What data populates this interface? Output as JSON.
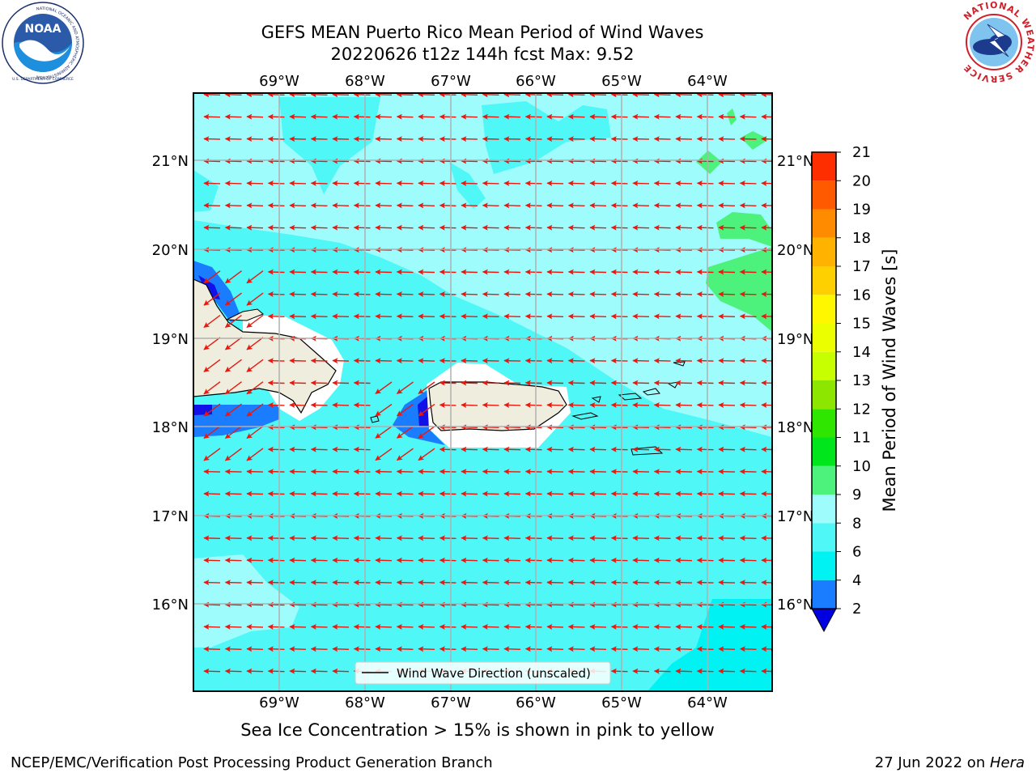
{
  "header": {
    "title_line1": "GEFS MEAN Puerto Rico Mean Period of Wind Waves",
    "title_line2": "20220626 t12z 144h fcst   Max: 9.52"
  },
  "logos": {
    "noaa_text": "NOAA",
    "noaa_ring_text": "NATIONAL OCEANIC AND ATMOSPHERIC ADMINISTRATION",
    "noaa_bottom_text": "U.S. DEPARTMENT OF COMMERCE",
    "nws_ring_text": "NATIONAL WEATHER SERVICE"
  },
  "map": {
    "lon_labels": [
      "69°W",
      "68°W",
      "67°W",
      "66°W",
      "65°W",
      "64°W"
    ],
    "lat_labels": [
      "16°N",
      "17°N",
      "18°N",
      "19°N",
      "20°N",
      "21°N"
    ],
    "legend_label": "Wind Wave Direction (unscaled)",
    "colors": {
      "light_cyan": "#9ffcfc",
      "mid_cyan": "#4ff7f7",
      "cyan": "#00f2f2",
      "blue": "#1a7dff",
      "dark_blue": "#1111e8",
      "green": "#4cf27c",
      "land": "#efedde",
      "arrow": "#e8180f"
    }
  },
  "colorbar": {
    "label": "Mean Period of Wind Waves [s]",
    "ticks": [
      "2",
      "4",
      "6",
      "8",
      "9",
      "10",
      "11",
      "12",
      "13",
      "14",
      "15",
      "16",
      "17",
      "18",
      "19",
      "20",
      "21"
    ],
    "colors": [
      "#1a7dff",
      "#00f2f2",
      "#4ff7f7",
      "#9ffcfc",
      "#4cf27c",
      "#00e61c",
      "#2fe600",
      "#8ce600",
      "#c8ff00",
      "#ebff00",
      "#fff700",
      "#ffd000",
      "#ffb300",
      "#ff8c00",
      "#ff5a00",
      "#ff2e00",
      "#ff0000"
    ],
    "under_color": "#0000e0"
  },
  "subtitle": "Sea Ice Concentration > 15% is shown in pink to yellow",
  "footer": {
    "left": "NCEP/EMC/Verification Post Processing Product Generation Branch",
    "right_date": "27 Jun 2022 on ",
    "right_host": "Hera"
  }
}
